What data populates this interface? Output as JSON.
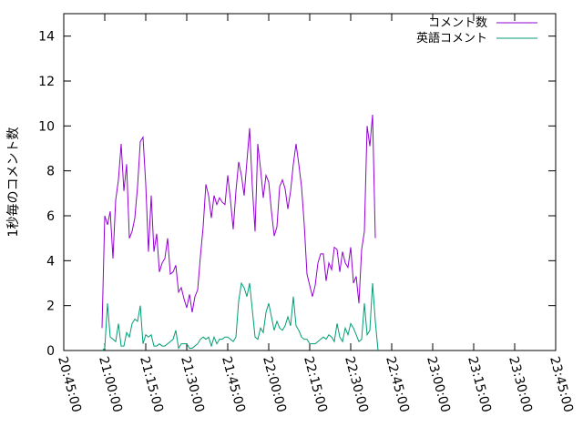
{
  "chart_data": {
    "type": "line",
    "ylabel": "1秒毎のコメント数",
    "ylim": [
      0,
      15
    ],
    "yticks": [
      0,
      2,
      4,
      6,
      8,
      10,
      12,
      14
    ],
    "xlim": [
      "20:45:00",
      "23:45:00"
    ],
    "xticks": [
      "20:45:00",
      "21:00:00",
      "21:15:00",
      "21:30:00",
      "21:45:00",
      "22:00:00",
      "22:15:00",
      "22:30:00",
      "22:45:00",
      "23:00:00",
      "23:15:00",
      "23:30:00",
      "23:45:00"
    ],
    "grid": false,
    "legend_position": "top-right",
    "series": [
      {
        "name": "コメント数",
        "color": "#9400d3",
        "points": [
          [
            "20:59:00",
            1.0
          ],
          [
            "21:00:00",
            6.0
          ],
          [
            "21:01:00",
            5.6
          ],
          [
            "21:02:00",
            6.2
          ],
          [
            "21:03:00",
            4.1
          ],
          [
            "21:04:00",
            6.7
          ],
          [
            "21:05:00",
            7.6
          ],
          [
            "21:06:00",
            9.2
          ],
          [
            "21:07:00",
            7.1
          ],
          [
            "21:08:00",
            8.3
          ],
          [
            "21:09:00",
            5.0
          ],
          [
            "21:10:00",
            5.3
          ],
          [
            "21:11:00",
            5.9
          ],
          [
            "21:12:00",
            7.3
          ],
          [
            "21:13:00",
            9.3
          ],
          [
            "21:14:00",
            9.5
          ],
          [
            "21:15:00",
            7.4
          ],
          [
            "21:16:00",
            4.4
          ],
          [
            "21:17:00",
            6.9
          ],
          [
            "21:18:00",
            4.4
          ],
          [
            "21:19:00",
            5.2
          ],
          [
            "21:20:00",
            3.5
          ],
          [
            "21:21:00",
            3.9
          ],
          [
            "21:22:00",
            4.1
          ],
          [
            "21:23:00",
            5.0
          ],
          [
            "21:24:00",
            3.4
          ],
          [
            "21:25:00",
            3.5
          ],
          [
            "21:26:00",
            3.8
          ],
          [
            "21:27:00",
            2.6
          ],
          [
            "21:28:00",
            2.8
          ],
          [
            "21:29:00",
            2.3
          ],
          [
            "21:30:00",
            1.9
          ],
          [
            "21:31:00",
            2.5
          ],
          [
            "21:32:00",
            1.7
          ],
          [
            "21:33:00",
            2.4
          ],
          [
            "21:34:00",
            2.7
          ],
          [
            "21:35:00",
            4.2
          ],
          [
            "21:36:00",
            5.5
          ],
          [
            "21:37:00",
            7.4
          ],
          [
            "21:38:00",
            6.9
          ],
          [
            "21:39:00",
            5.9
          ],
          [
            "21:40:00",
            6.9
          ],
          [
            "21:41:00",
            6.5
          ],
          [
            "21:42:00",
            6.8
          ],
          [
            "21:43:00",
            6.6
          ],
          [
            "21:44:00",
            6.5
          ],
          [
            "21:45:00",
            7.8
          ],
          [
            "21:46:00",
            6.7
          ],
          [
            "21:47:00",
            5.4
          ],
          [
            "21:48:00",
            7.1
          ],
          [
            "21:49:00",
            8.4
          ],
          [
            "21:50:00",
            7.8
          ],
          [
            "21:51:00",
            6.9
          ],
          [
            "21:52:00",
            8.4
          ],
          [
            "21:53:00",
            9.9
          ],
          [
            "21:54:00",
            7.3
          ],
          [
            "21:55:00",
            5.3
          ],
          [
            "21:56:00",
            9.2
          ],
          [
            "21:57:00",
            8.1
          ],
          [
            "21:58:00",
            6.8
          ],
          [
            "21:59:00",
            7.8
          ],
          [
            "22:00:00",
            7.5
          ],
          [
            "22:01:00",
            6.2
          ],
          [
            "22:02:00",
            5.1
          ],
          [
            "22:03:00",
            5.5
          ],
          [
            "22:04:00",
            7.3
          ],
          [
            "22:05:00",
            7.6
          ],
          [
            "22:06:00",
            7.2
          ],
          [
            "22:07:00",
            6.3
          ],
          [
            "22:08:00",
            7.1
          ],
          [
            "22:09:00",
            8.3
          ],
          [
            "22:10:00",
            9.2
          ],
          [
            "22:11:00",
            8.3
          ],
          [
            "22:12:00",
            7.3
          ],
          [
            "22:13:00",
            5.6
          ],
          [
            "22:14:00",
            3.4
          ],
          [
            "22:15:00",
            2.9
          ],
          [
            "22:16:00",
            2.4
          ],
          [
            "22:17:00",
            2.9
          ],
          [
            "22:18:00",
            3.9
          ],
          [
            "22:19:00",
            4.3
          ],
          [
            "22:20:00",
            4.3
          ],
          [
            "22:21:00",
            3.1
          ],
          [
            "22:22:00",
            3.9
          ],
          [
            "22:23:00",
            3.6
          ],
          [
            "22:24:00",
            4.6
          ],
          [
            "22:25:00",
            4.5
          ],
          [
            "22:26:00",
            3.5
          ],
          [
            "22:27:00",
            4.4
          ],
          [
            "22:28:00",
            3.9
          ],
          [
            "22:29:00",
            3.7
          ],
          [
            "22:30:00",
            4.6
          ],
          [
            "22:31:00",
            3.0
          ],
          [
            "22:32:00",
            3.3
          ],
          [
            "22:33:00",
            2.1
          ],
          [
            "22:34:00",
            4.5
          ],
          [
            "22:35:00",
            5.3
          ],
          [
            "22:36:00",
            10.0
          ],
          [
            "22:37:00",
            9.1
          ],
          [
            "22:38:00",
            10.5
          ],
          [
            "22:39:00",
            5.0
          ]
        ]
      },
      {
        "name": "英語コメント",
        "color": "#009e73",
        "points": [
          [
            "20:59:00",
            0.0
          ],
          [
            "21:00:00",
            0.1
          ],
          [
            "21:01:00",
            2.1
          ],
          [
            "21:02:00",
            0.6
          ],
          [
            "21:03:00",
            0.5
          ],
          [
            "21:04:00",
            0.4
          ],
          [
            "21:05:00",
            1.2
          ],
          [
            "21:06:00",
            0.2
          ],
          [
            "21:07:00",
            0.2
          ],
          [
            "21:08:00",
            0.8
          ],
          [
            "21:09:00",
            0.6
          ],
          [
            "21:10:00",
            1.2
          ],
          [
            "21:11:00",
            1.4
          ],
          [
            "21:12:00",
            1.3
          ],
          [
            "21:13:00",
            2.0
          ],
          [
            "21:14:00",
            0.3
          ],
          [
            "21:15:00",
            0.7
          ],
          [
            "21:16:00",
            0.6
          ],
          [
            "21:17:00",
            0.7
          ],
          [
            "21:18:00",
            0.2
          ],
          [
            "21:19:00",
            0.2
          ],
          [
            "21:20:00",
            0.3
          ],
          [
            "21:21:00",
            0.2
          ],
          [
            "21:22:00",
            0.2
          ],
          [
            "21:23:00",
            0.3
          ],
          [
            "21:24:00",
            0.4
          ],
          [
            "21:25:00",
            0.5
          ],
          [
            "21:26:00",
            0.9
          ],
          [
            "21:27:00",
            0.1
          ],
          [
            "21:28:00",
            0.3
          ],
          [
            "21:29:00",
            0.3
          ],
          [
            "21:30:00",
            0.3
          ],
          [
            "21:31:00",
            0.1
          ],
          [
            "21:32:00",
            0.1
          ],
          [
            "21:33:00",
            0.2
          ],
          [
            "21:34:00",
            0.3
          ],
          [
            "21:35:00",
            0.5
          ],
          [
            "21:36:00",
            0.6
          ],
          [
            "21:37:00",
            0.5
          ],
          [
            "21:38:00",
            0.6
          ],
          [
            "21:39:00",
            0.2
          ],
          [
            "21:40:00",
            0.6
          ],
          [
            "21:41:00",
            0.3
          ],
          [
            "21:42:00",
            0.5
          ],
          [
            "21:43:00",
            0.5
          ],
          [
            "21:44:00",
            0.6
          ],
          [
            "21:45:00",
            0.6
          ],
          [
            "21:46:00",
            0.5
          ],
          [
            "21:47:00",
            0.4
          ],
          [
            "21:48:00",
            0.6
          ],
          [
            "21:49:00",
            2.2
          ],
          [
            "21:50:00",
            3.0
          ],
          [
            "21:51:00",
            2.8
          ],
          [
            "21:52:00",
            2.4
          ],
          [
            "21:53:00",
            3.0
          ],
          [
            "21:54:00",
            1.8
          ],
          [
            "21:55:00",
            0.6
          ],
          [
            "21:56:00",
            0.5
          ],
          [
            "21:57:00",
            1.0
          ],
          [
            "21:58:00",
            0.8
          ],
          [
            "21:59:00",
            1.7
          ],
          [
            "22:00:00",
            2.1
          ],
          [
            "22:01:00",
            1.5
          ],
          [
            "22:02:00",
            0.9
          ],
          [
            "22:03:00",
            1.3
          ],
          [
            "22:04:00",
            1.0
          ],
          [
            "22:05:00",
            0.9
          ],
          [
            "22:06:00",
            1.1
          ],
          [
            "22:07:00",
            1.5
          ],
          [
            "22:08:00",
            1.1
          ],
          [
            "22:09:00",
            2.4
          ],
          [
            "22:10:00",
            1.1
          ],
          [
            "22:11:00",
            0.9
          ],
          [
            "22:12:00",
            0.6
          ],
          [
            "22:13:00",
            0.5
          ],
          [
            "22:14:00",
            0.5
          ],
          [
            "22:15:00",
            0.3
          ],
          [
            "22:16:00",
            0.3
          ],
          [
            "22:17:00",
            0.3
          ],
          [
            "22:18:00",
            0.4
          ],
          [
            "22:19:00",
            0.5
          ],
          [
            "22:20:00",
            0.6
          ],
          [
            "22:21:00",
            0.5
          ],
          [
            "22:22:00",
            0.7
          ],
          [
            "22:23:00",
            0.6
          ],
          [
            "22:24:00",
            0.4
          ],
          [
            "22:25:00",
            1.2
          ],
          [
            "22:26:00",
            0.6
          ],
          [
            "22:27:00",
            0.4
          ],
          [
            "22:28:00",
            1.0
          ],
          [
            "22:29:00",
            0.7
          ],
          [
            "22:30:00",
            1.2
          ],
          [
            "22:31:00",
            1.0
          ],
          [
            "22:32:00",
            0.7
          ],
          [
            "22:33:00",
            0.4
          ],
          [
            "22:34:00",
            0.5
          ],
          [
            "22:35:00",
            2.1
          ],
          [
            "22:36:00",
            0.7
          ],
          [
            "22:37:00",
            0.9
          ],
          [
            "22:38:00",
            3.0
          ],
          [
            "22:39:00",
            1.3
          ],
          [
            "22:40:00",
            0.0
          ]
        ]
      }
    ]
  }
}
